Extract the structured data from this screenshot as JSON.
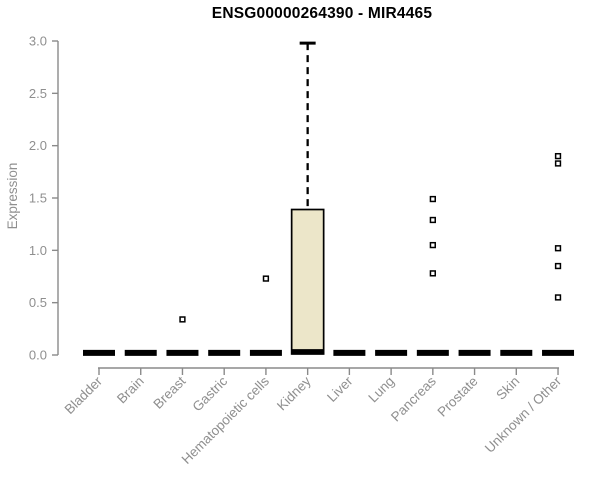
{
  "chart_data": {
    "type": "boxplot",
    "title": "ENSG00000264390 - MIR4465",
    "ylabel": "Expression",
    "xlabel": "",
    "ylim": [
      0,
      3
    ],
    "ytick_labels": [
      "0.0",
      "0.5",
      "1.0",
      "1.5",
      "2.0",
      "2.5",
      "3.0"
    ],
    "grid": "off",
    "legend": "none",
    "categories": [
      "Bladder",
      "Brain",
      "Breast",
      "Gastric",
      "Hematopoietic cells",
      "Kidney",
      "Liver",
      "Lung",
      "Pancreas",
      "Prostate",
      "Skin",
      "Unknown / Other"
    ],
    "boxes": [
      {
        "category": "Bladder",
        "median": 0.02,
        "q1": 0.0,
        "q3": 0.02,
        "whisker_low": 0.0,
        "whisker_high": 0.02,
        "outliers": []
      },
      {
        "category": "Brain",
        "median": 0.02,
        "q1": 0.0,
        "q3": 0.02,
        "whisker_low": 0.0,
        "whisker_high": 0.02,
        "outliers": []
      },
      {
        "category": "Breast",
        "median": 0.02,
        "q1": 0.0,
        "q3": 0.02,
        "whisker_low": 0.0,
        "whisker_high": 0.02,
        "outliers": [
          0.34
        ]
      },
      {
        "category": "Gastric",
        "median": 0.02,
        "q1": 0.0,
        "q3": 0.02,
        "whisker_low": 0.0,
        "whisker_high": 0.02,
        "outliers": []
      },
      {
        "category": "Hematopoietic cells",
        "median": 0.02,
        "q1": 0.0,
        "q3": 0.02,
        "whisker_low": 0.0,
        "whisker_high": 0.02,
        "outliers": [
          0.73
        ]
      },
      {
        "category": "Kidney",
        "median": 0.03,
        "q1": 0.01,
        "q3": 1.39,
        "whisker_low": 0.01,
        "whisker_high": 2.98,
        "outliers": []
      },
      {
        "category": "Liver",
        "median": 0.02,
        "q1": 0.0,
        "q3": 0.02,
        "whisker_low": 0.0,
        "whisker_high": 0.02,
        "outliers": []
      },
      {
        "category": "Lung",
        "median": 0.02,
        "q1": 0.0,
        "q3": 0.02,
        "whisker_low": 0.0,
        "whisker_high": 0.02,
        "outliers": []
      },
      {
        "category": "Pancreas",
        "median": 0.02,
        "q1": 0.0,
        "q3": 0.02,
        "whisker_low": 0.0,
        "whisker_high": 0.02,
        "outliers": [
          1.49,
          1.29,
          1.05,
          0.78
        ]
      },
      {
        "category": "Prostate",
        "median": 0.02,
        "q1": 0.0,
        "q3": 0.02,
        "whisker_low": 0.0,
        "whisker_high": 0.02,
        "outliers": []
      },
      {
        "category": "Skin",
        "median": 0.02,
        "q1": 0.0,
        "q3": 0.02,
        "whisker_low": 0.0,
        "whisker_high": 0.02,
        "outliers": []
      },
      {
        "category": "Unknown / Other",
        "median": 0.02,
        "q1": 0.0,
        "q3": 0.02,
        "whisker_low": 0.0,
        "whisker_high": 0.02,
        "outliers": [
          1.9,
          1.83,
          1.02,
          0.85,
          0.55
        ]
      }
    ],
    "colors": {
      "box_fill": "#ECE6C9",
      "box_stroke": "#000000",
      "median": "#000000",
      "whisker": "#000000",
      "outlier_fill": "#ffffff",
      "outlier_stroke": "#000000",
      "axis_line": "#8a8a8a",
      "axis_text": "#8f8f8f",
      "title_text": "#000000"
    }
  }
}
